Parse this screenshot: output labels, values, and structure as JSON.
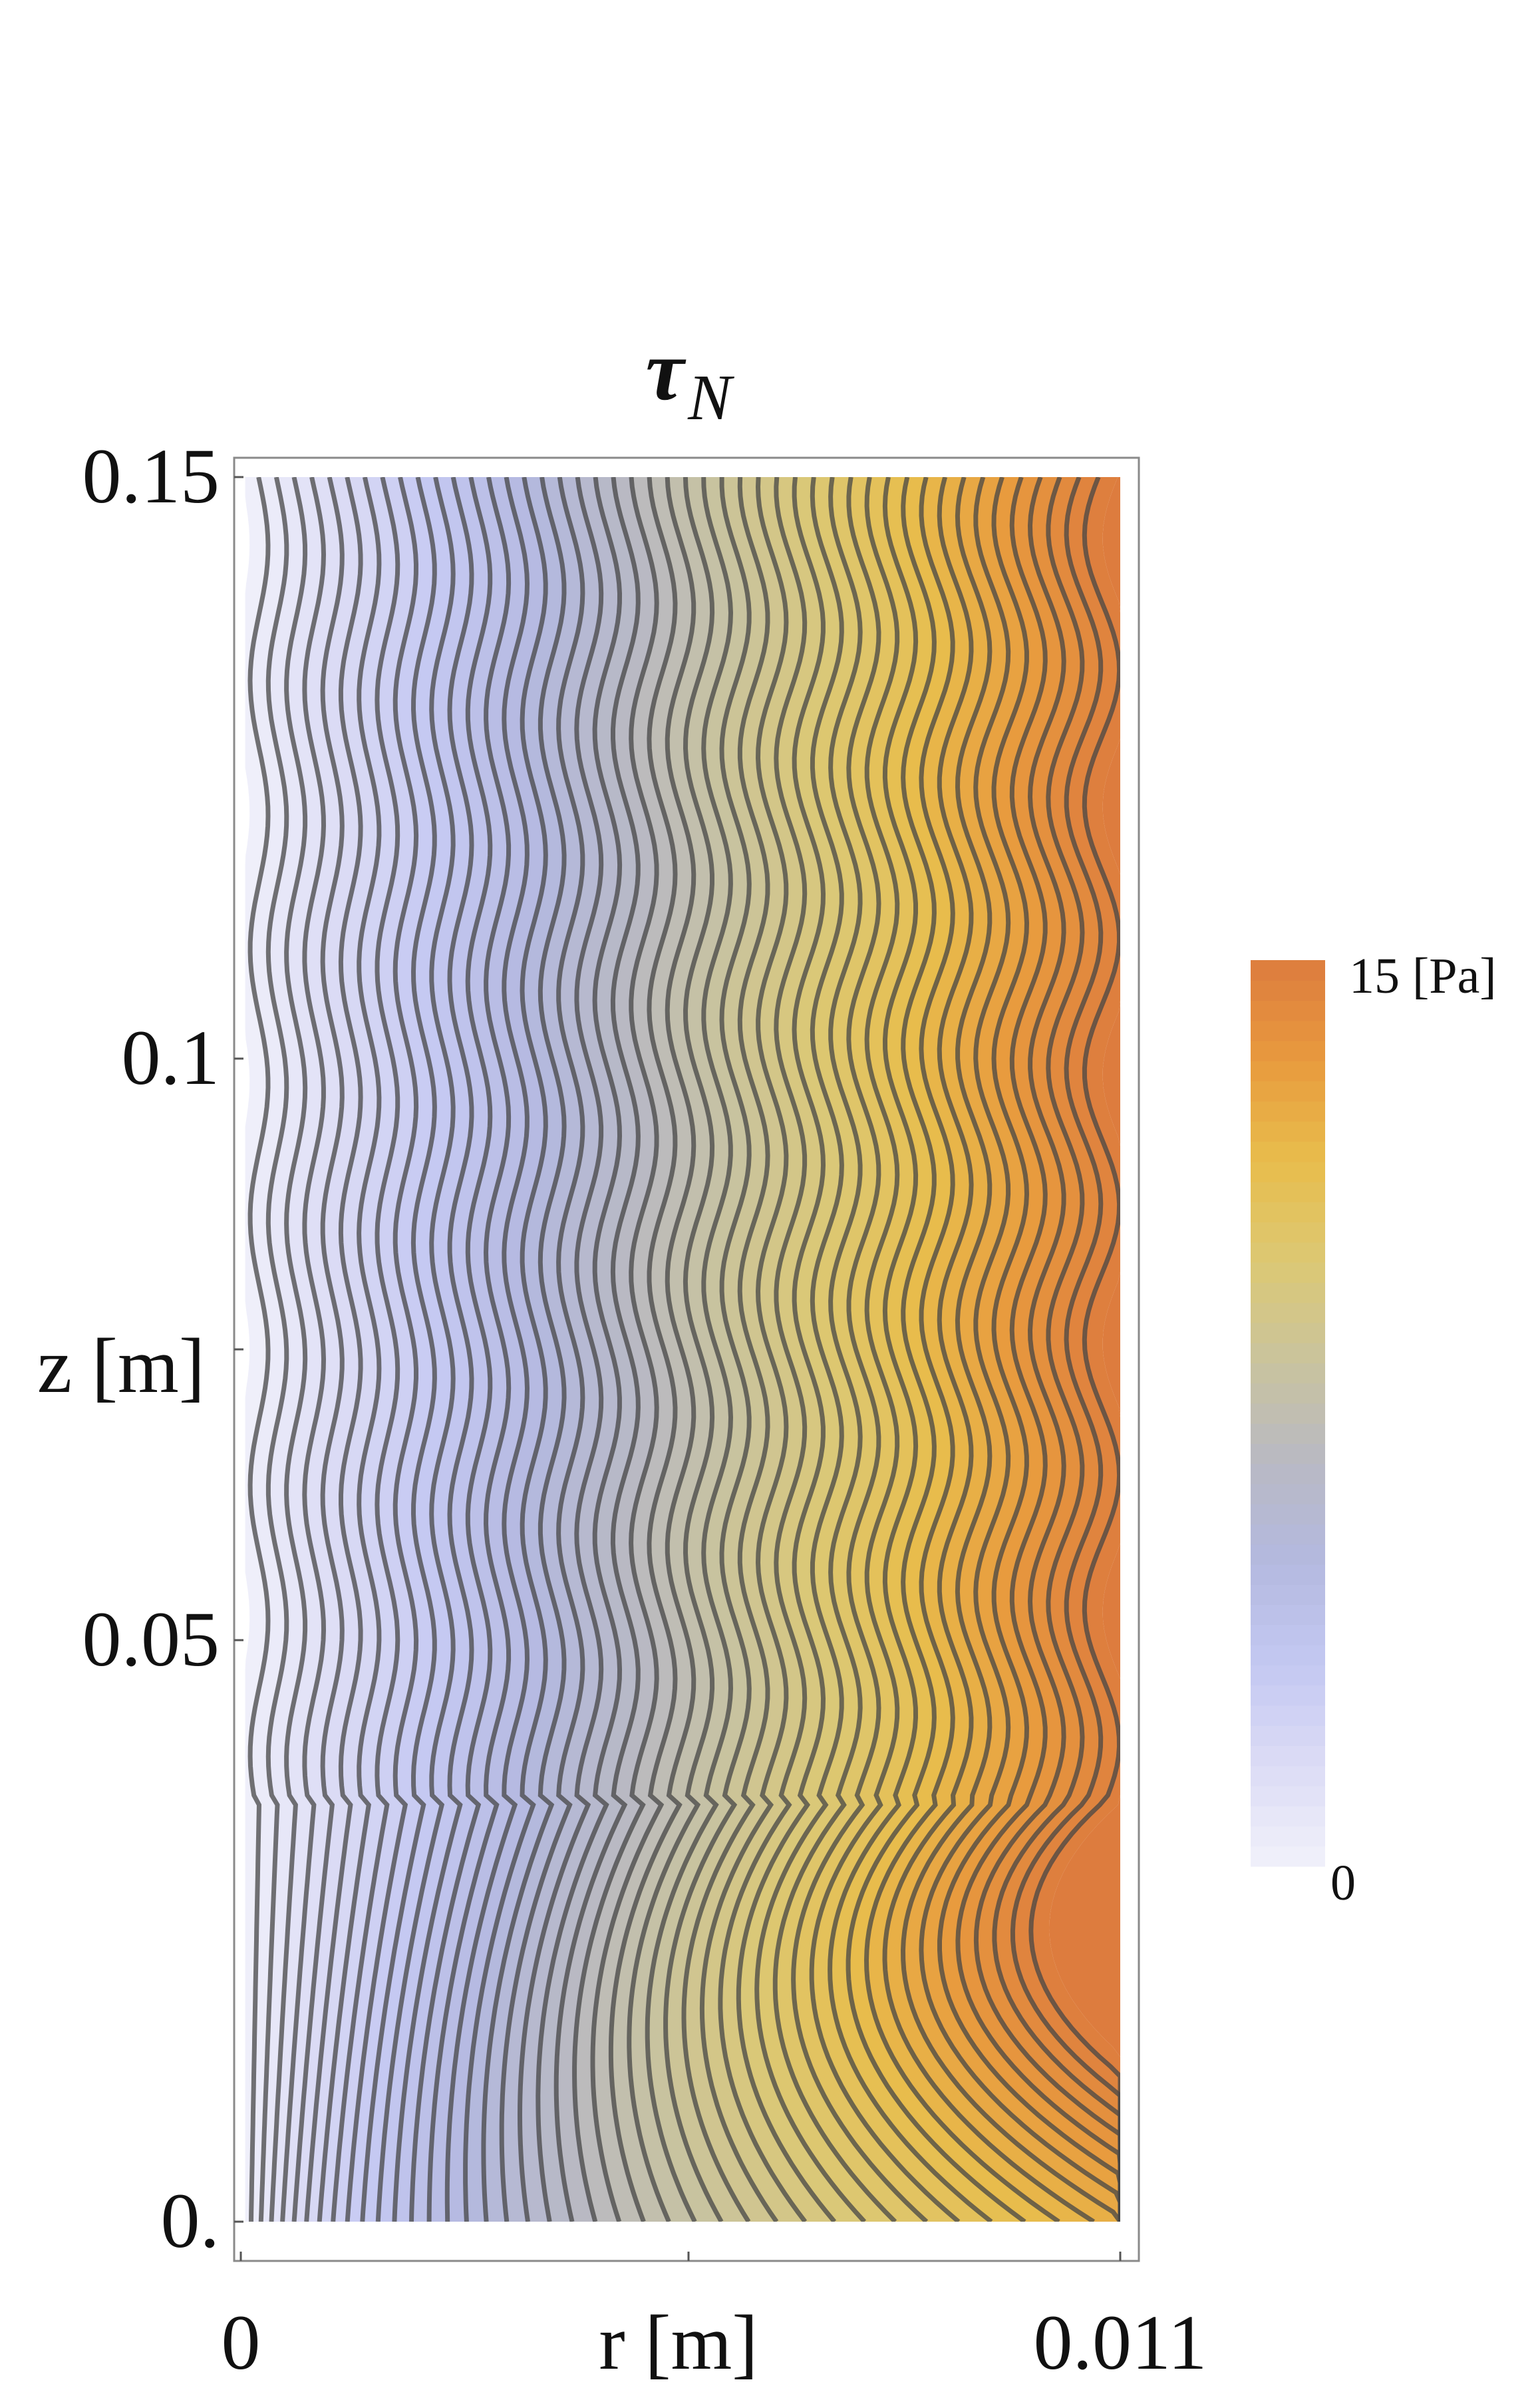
{
  "chart_data": {
    "type": "heatmap",
    "subtype": "filled contour plot",
    "title": {
      "main": "τ",
      "subscript": "N"
    },
    "xlabel": "r [m]",
    "ylabel": "z [m]",
    "xlim": [
      0,
      0.011
    ],
    "ylim": [
      0,
      0.15
    ],
    "x_ticks": [
      {
        "value": 0,
        "label": "0"
      },
      {
        "value": 0.011,
        "label": "0.011"
      }
    ],
    "y_ticks": [
      {
        "value": 0,
        "label": "0."
      },
      {
        "value": 0.05,
        "label": "0.05"
      },
      {
        "value": 0.1,
        "label": "0.1"
      },
      {
        "value": 0.15,
        "label": "0.15"
      }
    ],
    "colorbar": {
      "min": 0,
      "max": 15,
      "min_label": "0",
      "max_label": "15 [Pa]",
      "colors": [
        "#f1f1fb",
        "#dcdcf5",
        "#c4c8f2",
        "#b4b9e0",
        "#b8b9c4",
        "#c9c39e",
        "#dcc874",
        "#e8bd4c",
        "#e89a3e",
        "#dd7c3e"
      ]
    },
    "contour_levels": 48,
    "field_trend": "tau_N increases with r from 0 at the axis to about 15 Pa at the outer wall; near the bottom (z < 0.035) low values fan out from the inlet at r ≈ 0, and contour lines ripple periodically along z",
    "grid": false,
    "legend": "colorbar at right"
  }
}
